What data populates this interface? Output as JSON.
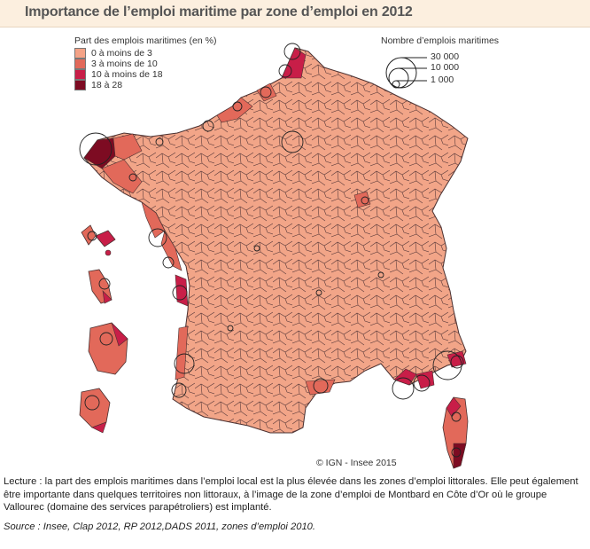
{
  "title": "Importance de l’emploi maritime par zone d’emploi en 2012",
  "legend_share": {
    "title": "Part des emplois maritimes (en %)",
    "classes": [
      {
        "label": "0 à moins de 3",
        "color": "#f4a286"
      },
      {
        "label": "3 à moins de 10",
        "color": "#e2695a"
      },
      {
        "label": "10 à moins de 18",
        "color": "#c81e48"
      },
      {
        "label": "18 à 28",
        "color": "#7d0b22"
      }
    ]
  },
  "legend_count": {
    "title": "Nombre d’emplois maritimes",
    "values": [
      "30 000",
      "10 000",
      "1 000"
    ]
  },
  "map": {
    "border_color": "#4a3030",
    "regions": [
      "France métropolitaine",
      "Corse",
      "Guadeloupe",
      "Martinique",
      "Guyane",
      "La Réunion"
    ]
  },
  "copyright": "© IGN - Insee 2015",
  "caption": "Lecture : la part des emplois maritimes dans l’emploi local est la plus élevée dans les zones d’emploi littorales. Elle peut également être importante dans quelques territoires non littoraux, à l’image de la zone d’emploi de Montbard en Côte d’Or où le groupe Vallourec (domaine des services parapétroliers) est implanté.",
  "source": "Source :  Insee, Clap 2012, RP 2012,DADS 2011, zones d’emploi 2010."
}
